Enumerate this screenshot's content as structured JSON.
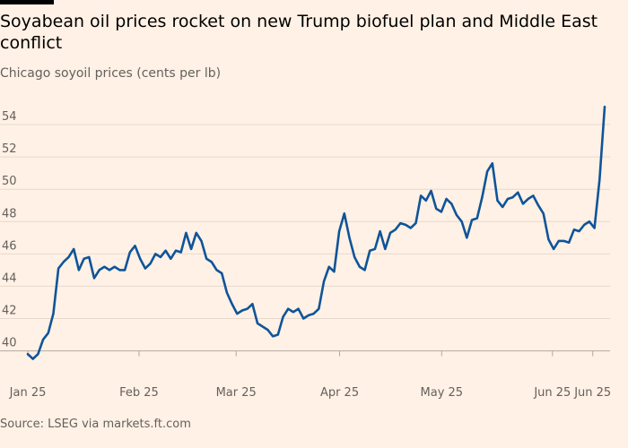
{
  "header": {
    "title": "Soyabean oil prices rocket on new Trump biofuel plan and Middle East conflict",
    "subtitle": "Chicago soyoil prices (cents per lb)"
  },
  "footer": {
    "source": "Source: LSEG via markets.ft.com"
  },
  "colors": {
    "background": "#fff1e5",
    "line": "#0f5499",
    "grid": "#e6d9ce",
    "text": "#66605c"
  },
  "chart_data": {
    "type": "line",
    "title": "Soyabean oil prices rocket on new Trump biofuel plan and Middle East conflict",
    "subtitle": "Chicago soyoil prices (cents per lb)",
    "xlabel": "",
    "ylabel": "",
    "ylim": [
      39.2,
      55.5
    ],
    "yticks": [
      40,
      42,
      44,
      46,
      48,
      50,
      52,
      54
    ],
    "grid": true,
    "xticks": [
      {
        "label": "Jan 25",
        "t": 0
      },
      {
        "label": "Feb 25",
        "t": 24.3
      },
      {
        "label": "Mar 25",
        "t": 45.5
      },
      {
        "label": "Apr 25",
        "t": 68.1
      },
      {
        "label": "May 25",
        "t": 90.4
      },
      {
        "label": "Jun 25",
        "t": 114.6
      },
      {
        "label": "Jun 25",
        "t": 123.4
      }
    ],
    "x_range": [
      0,
      126
    ],
    "series": [
      {
        "values": [
          39.8,
          39.5,
          39.8,
          40.7,
          41.1,
          42.3,
          45.1,
          45.5,
          45.8,
          46.3,
          45.0,
          45.7,
          45.8,
          44.5,
          45.0,
          45.2,
          45.0,
          45.2,
          45.0,
          45.0,
          46.1,
          46.5,
          45.7,
          45.1,
          45.4,
          46.0,
          45.8,
          46.2,
          45.7,
          46.2,
          46.1,
          47.3,
          46.3,
          47.3,
          46.8,
          45.7,
          45.5,
          45.0,
          44.8,
          43.6,
          42.9,
          42.3,
          42.5,
          42.6,
          42.9,
          41.7,
          41.5,
          41.3,
          40.9,
          41.0,
          42.1,
          42.6,
          42.4,
          42.6,
          42.0,
          42.2,
          42.3,
          42.6,
          44.3,
          45.2,
          44.9,
          47.4,
          48.5,
          47.0,
          45.8,
          45.2,
          45.0,
          46.2,
          46.3,
          47.4,
          46.3,
          47.3,
          47.5,
          47.9,
          47.8,
          47.6,
          47.9,
          49.6,
          49.3,
          49.9,
          48.8,
          48.6,
          49.4,
          49.1,
          48.4,
          48.0,
          47.0,
          48.1,
          48.2,
          49.5,
          51.1,
          51.6,
          49.3,
          48.9,
          49.4,
          49.5,
          49.8,
          49.1,
          49.4,
          49.6,
          49.0,
          48.5,
          46.9,
          46.3,
          46.8,
          46.8,
          46.7,
          47.5,
          47.4,
          47.8,
          48.0,
          47.6,
          50.6,
          55.1
        ]
      }
    ]
  }
}
